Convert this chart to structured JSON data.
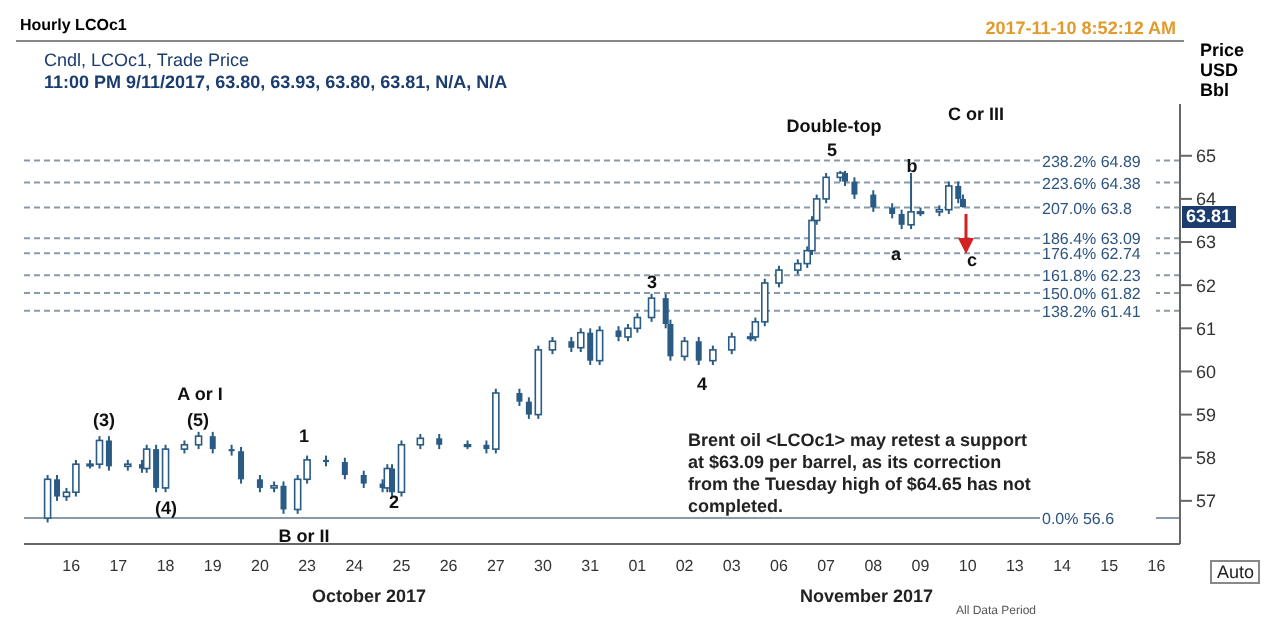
{
  "chart_data": {
    "type": "candlestick",
    "title": "Hourly LCOc1",
    "subtitle": "Cndl, LCOc1, Trade Price",
    "ylabel": "Price USD Bbl",
    "color": "#2a5b84",
    "categories": [
      null,
      null,
      null,
      null,
      null,
      null,
      null,
      null,
      null,
      null,
      "16",
      null,
      null,
      null,
      null,
      null,
      null,
      null,
      null,
      null,
      "17",
      null,
      null,
      null,
      null,
      null,
      null,
      null,
      null,
      null,
      "18",
      null,
      null,
      null,
      null,
      null,
      null,
      null,
      null,
      null,
      "19",
      null,
      null,
      null,
      null,
      null,
      null,
      null,
      null,
      null,
      "20",
      null,
      null,
      null,
      null,
      null,
      null,
      null,
      null,
      null,
      "23",
      null,
      null,
      null,
      null,
      null,
      null,
      null,
      null,
      null,
      "24",
      null,
      null,
      null,
      null,
      null,
      null,
      null,
      null,
      null,
      "25",
      null,
      null,
      null,
      null,
      null,
      null,
      null,
      null,
      null,
      "26",
      null,
      null,
      null,
      null,
      null,
      null,
      null,
      null,
      null,
      "27",
      null,
      null,
      null,
      null,
      null,
      null,
      null,
      null,
      null,
      "30",
      null,
      null,
      null,
      null,
      null,
      null,
      null,
      null,
      null,
      "31",
      null,
      null,
      null,
      null,
      null,
      null,
      null,
      null,
      null,
      "01",
      null,
      null,
      null,
      null,
      null,
      null,
      null,
      null,
      null,
      "02",
      null,
      null,
      null,
      null,
      null,
      null,
      null,
      null,
      null,
      "03",
      null,
      null,
      null,
      null,
      null,
      null,
      null,
      null,
      null,
      "06",
      null,
      null,
      null,
      null,
      null,
      null,
      null,
      null,
      null,
      "07",
      null,
      null,
      null,
      null,
      null,
      null,
      null,
      null,
      null,
      "08",
      null,
      null,
      null,
      null,
      null,
      null,
      null,
      null,
      null,
      "09",
      null,
      null,
      null,
      null,
      null,
      null,
      null,
      null,
      null,
      "10",
      null,
      null,
      null,
      null,
      null,
      null,
      null,
      null,
      null,
      "13",
      null,
      null,
      null,
      null,
      null,
      null,
      null,
      null,
      null,
      "14",
      null,
      null,
      null,
      null,
      null,
      null,
      null,
      null,
      null,
      "15",
      null,
      null,
      null,
      null,
      null,
      null,
      null,
      null,
      null,
      "16",
      null,
      null,
      null,
      null,
      null
    ],
    "ohlc": [
      null,
      null,
      null,
      null,
      null,
      [
        56.6,
        57.6,
        56.5,
        57.5
      ],
      null,
      [
        57.5,
        57.6,
        57.0,
        57.1
      ],
      null,
      [
        57.1,
        57.3,
        57.0,
        57.2
      ],
      null,
      [
        57.2,
        57.95,
        57.1,
        57.85
      ],
      null,
      null,
      [
        57.85,
        57.95,
        57.75,
        57.85
      ],
      null,
      [
        57.85,
        58.5,
        57.75,
        58.4
      ],
      null,
      [
        58.4,
        58.5,
        57.7,
        57.8
      ],
      null,
      null,
      null,
      [
        57.8,
        57.95,
        57.7,
        57.85
      ],
      null,
      null,
      [
        57.85,
        57.95,
        57.65,
        57.75
      ],
      [
        57.75,
        58.3,
        57.65,
        58.2
      ],
      null,
      [
        58.2,
        58.3,
        57.2,
        57.3
      ],
      null,
      [
        57.3,
        58.3,
        57.2,
        58.2
      ],
      null,
      null,
      null,
      [
        58.2,
        58.4,
        58.1,
        58.3
      ],
      null,
      null,
      [
        58.3,
        58.6,
        58.2,
        58.5
      ],
      null,
      null,
      [
        58.5,
        58.6,
        58.1,
        58.2
      ],
      null,
      null,
      null,
      [
        58.2,
        58.3,
        58.05,
        58.15
      ],
      null,
      [
        58.15,
        58.25,
        57.4,
        57.5
      ],
      null,
      null,
      null,
      [
        57.5,
        57.6,
        57.2,
        57.3
      ],
      null,
      null,
      [
        57.3,
        57.45,
        57.2,
        57.35
      ],
      null,
      [
        57.35,
        57.45,
        56.7,
        56.8
      ],
      null,
      null,
      [
        56.8,
        57.6,
        56.7,
        57.5
      ],
      null,
      [
        57.5,
        58.05,
        57.4,
        57.95
      ],
      null,
      null,
      null,
      [
        57.95,
        58.05,
        57.8,
        57.9
      ],
      null,
      null,
      null,
      [
        57.9,
        58.0,
        57.5,
        57.6
      ],
      null,
      null,
      null,
      [
        57.6,
        57.7,
        57.3,
        57.4
      ],
      null,
      null,
      null,
      [
        57.4,
        57.5,
        57.2,
        57.3
      ],
      [
        57.3,
        57.85,
        57.2,
        57.75
      ],
      [
        57.75,
        57.85,
        57.1,
        57.2
      ],
      null,
      [
        57.2,
        58.4,
        57.1,
        58.3
      ],
      null,
      null,
      null,
      [
        58.3,
        58.55,
        58.2,
        58.45
      ],
      null,
      null,
      null,
      [
        58.45,
        58.55,
        58.2,
        58.3
      ],
      null,
      null,
      null,
      null,
      null,
      [
        58.3,
        58.4,
        58.2,
        58.3
      ],
      null,
      null,
      null,
      [
        58.3,
        58.4,
        58.1,
        58.2
      ],
      null,
      [
        58.2,
        59.6,
        58.1,
        59.5
      ],
      null,
      null,
      null,
      null,
      [
        59.5,
        59.6,
        59.2,
        59.3
      ],
      null,
      [
        59.3,
        59.4,
        58.9,
        59.0
      ],
      null,
      [
        59.0,
        60.6,
        58.9,
        60.5
      ],
      null,
      null,
      [
        60.5,
        60.8,
        60.4,
        60.7
      ],
      null,
      null,
      null,
      [
        60.7,
        60.8,
        60.45,
        60.55
      ],
      null,
      [
        60.55,
        61.0,
        60.45,
        60.9
      ],
      null,
      [
        60.9,
        61.0,
        60.15,
        60.25
      ],
      null,
      [
        60.25,
        61.05,
        60.15,
        60.95
      ],
      null,
      null,
      null,
      [
        60.95,
        61.05,
        60.7,
        60.8
      ],
      null,
      [
        60.8,
        61.1,
        60.7,
        61.0
      ],
      null,
      [
        61.0,
        61.35,
        60.9,
        61.25
      ],
      null,
      null,
      [
        61.25,
        61.8,
        61.15,
        61.7
      ],
      null,
      null,
      [
        61.7,
        61.8,
        61.0,
        61.1
      ],
      [
        61.1,
        61.2,
        60.25,
        60.35
      ],
      null,
      null,
      [
        60.35,
        60.8,
        60.25,
        60.7
      ],
      null,
      null,
      [
        60.7,
        60.8,
        60.15,
        60.25
      ],
      null,
      null,
      [
        60.25,
        60.6,
        60.15,
        60.5
      ],
      null,
      null,
      null,
      [
        60.5,
        60.9,
        60.4,
        60.8
      ],
      null,
      null,
      null,
      [
        60.8,
        60.9,
        60.7,
        60.8
      ],
      [
        60.8,
        61.25,
        60.7,
        61.15
      ],
      null,
      [
        61.15,
        62.15,
        61.05,
        62.05
      ],
      null,
      null,
      [
        62.05,
        62.45,
        61.95,
        62.35
      ],
      null,
      null,
      null,
      [
        62.35,
        62.6,
        62.25,
        62.5
      ],
      null,
      [
        62.5,
        62.9,
        62.4,
        62.8
      ],
      [
        62.8,
        63.6,
        62.7,
        63.5
      ],
      [
        63.5,
        64.1,
        63.4,
        64.0
      ],
      null,
      [
        64.0,
        64.6,
        63.9,
        64.5
      ],
      null,
      null,
      [
        64.5,
        64.65,
        64.4,
        64.6
      ],
      [
        64.6,
        64.65,
        64.3,
        64.4
      ],
      null,
      [
        64.4,
        64.5,
        64.0,
        64.1
      ],
      null,
      null,
      null,
      [
        64.1,
        64.2,
        63.7,
        63.8
      ],
      null,
      null,
      null,
      [
        63.8,
        63.9,
        63.55,
        63.65
      ],
      null,
      [
        63.65,
        63.75,
        63.3,
        63.4
      ],
      null,
      [
        63.4,
        64.6,
        63.3,
        63.7
      ],
      null,
      [
        63.7,
        63.8,
        63.6,
        63.7
      ],
      null,
      null,
      null,
      [
        63.7,
        63.85,
        63.6,
        63.75
      ],
      null,
      [
        63.75,
        64.4,
        63.65,
        64.3
      ],
      null,
      [
        64.3,
        64.4,
        63.9,
        64.0
      ],
      [
        64.0,
        64.1,
        63.8,
        63.81
      ],
      null,
      null,
      null,
      null,
      null,
      null,
      null,
      null,
      null,
      null,
      null,
      null,
      null,
      null,
      null,
      null,
      null,
      null,
      null,
      null,
      null,
      null,
      null,
      null,
      null,
      null,
      null,
      null,
      null,
      null,
      null,
      null,
      null,
      null,
      null,
      null,
      null,
      null,
      null,
      null,
      null,
      null,
      null,
      null,
      null,
      null
    ],
    "ylim": [
      56,
      66.2
    ],
    "yticks": [
      57,
      58,
      59,
      60,
      61,
      62,
      63,
      64,
      65
    ],
    "ref_lines": [
      {
        "axis": "y",
        "value": 64.89,
        "label": "238.2% 64.89",
        "color": "#8a9aaa",
        "line_style": "dashed"
      },
      {
        "axis": "y",
        "value": 64.38,
        "label": "223.6% 64.38",
        "color": "#8a9aaa",
        "line_style": "dashed"
      },
      {
        "axis": "y",
        "value": 63.8,
        "label": "207.0% 63.8",
        "color": "#8a9aaa",
        "line_style": "dashed"
      },
      {
        "axis": "y",
        "value": 63.09,
        "label": "186.4% 63.09",
        "color": "#8a9aaa",
        "line_style": "dashed"
      },
      {
        "axis": "y",
        "value": 62.74,
        "label": "176.4% 62.74",
        "color": "#8a9aaa",
        "line_style": "dashed"
      },
      {
        "axis": "y",
        "value": 62.23,
        "label": "161.8% 62.23",
        "color": "#8a9aaa",
        "line_style": "dashed"
      },
      {
        "axis": "y",
        "value": 61.82,
        "label": "150.0% 61.82",
        "color": "#8a9aaa",
        "line_style": "dashed"
      },
      {
        "axis": "y",
        "value": 61.41,
        "label": "138.2% 61.41",
        "color": "#8a9aaa",
        "line_style": "dashed"
      },
      {
        "axis": "y",
        "value": 56.6,
        "label": "0.0%      56.6",
        "color": "#8a9aaa",
        "line_style": "solid"
      }
    ],
    "annotations": [
      "11:00 PM 9/11/2017, 63.80, 63.93, 63.80, 63.81, N/A, N/A",
      "2017-11-10 8:52:12 AM",
      "October 2017",
      "November 2017",
      "Brent oil <LCOc1> may retest a support at $63.09 per barrel, as its correction from the Tuesday high of $64.65 has not completed.",
      "Auto",
      "All Data Period",
      "63.81",
      "(3)",
      "(4)",
      "(5)",
      "A or I",
      "1",
      "B or II",
      "2",
      "3",
      "4",
      "5",
      "Double-top",
      "b",
      "a",
      "c",
      "C or III"
    ]
  }
}
